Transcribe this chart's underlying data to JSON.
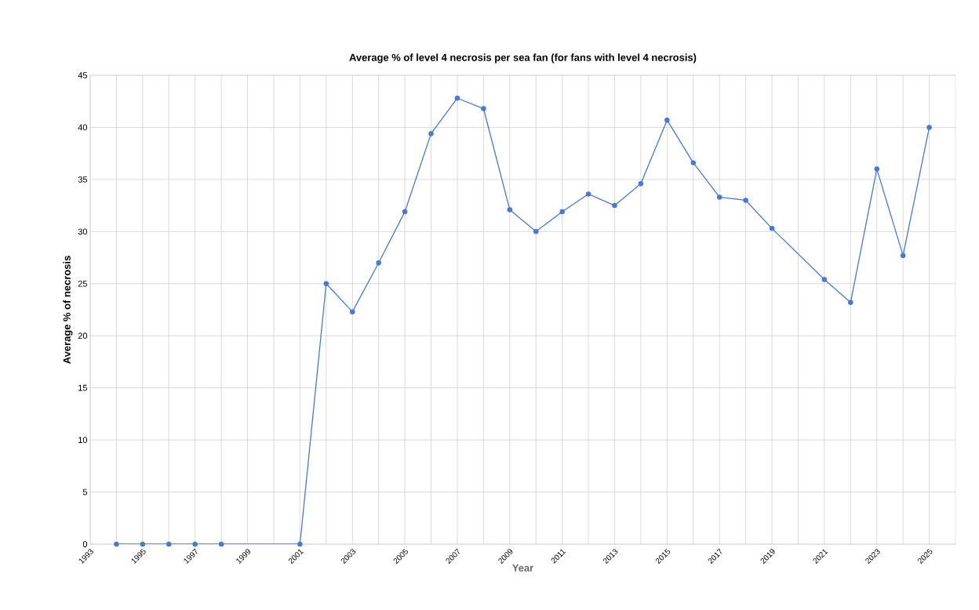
{
  "chart_data": {
    "type": "line",
    "title": "Average %  of level 4 necrosis per sea fan (for fans with level 4 necrosis)",
    "xlabel": "Year",
    "ylabel": "Average % of necrosis",
    "x": [
      1994,
      1995,
      1996,
      1997,
      1998,
      2001,
      2002,
      2003,
      2004,
      2005,
      2006,
      2007,
      2008,
      2009,
      2010,
      2011,
      2012,
      2013,
      2014,
      2015,
      2016,
      2017,
      2018,
      2019,
      2021,
      2022,
      2023,
      2024,
      2025
    ],
    "series": [
      {
        "color": "#4a78d0",
        "values": [
          0,
          0,
          0,
          0,
          0,
          0,
          25.0,
          22.3,
          27.0,
          31.9,
          39.4,
          42.8,
          41.8,
          32.1,
          30.0,
          31.9,
          33.6,
          32.5,
          34.6,
          40.7,
          36.6,
          33.3,
          33.0,
          30.3,
          25.4,
          23.2,
          36.0,
          27.7,
          40.0
        ]
      }
    ],
    "xlim": [
      1993,
      2026
    ],
    "ylim": [
      0,
      45
    ],
    "xticks": [
      1993,
      {
        "value": 1994,
        "label": null
      },
      1995,
      {
        "value": 1996,
        "label": null
      },
      1997,
      {
        "value": 1998,
        "label": null
      },
      1999,
      {
        "value": 2000,
        "label": null
      },
      2001,
      {
        "value": 2002,
        "label": null
      },
      2003,
      {
        "value": 2004,
        "label": null
      },
      2005,
      {
        "value": 2006,
        "label": null
      },
      2007,
      {
        "value": 2008,
        "label": null
      },
      2009,
      {
        "value": 2010,
        "label": null
      },
      2011,
      {
        "value": 2012,
        "label": null
      },
      2013,
      {
        "value": 2014,
        "label": null
      },
      2015,
      {
        "value": 2016,
        "label": null
      },
      2017,
      {
        "value": 2018,
        "label": null
      },
      2019,
      {
        "value": 2020,
        "label": null
      },
      2021,
      {
        "value": 2022,
        "label": null
      },
      2023,
      {
        "value": 2024,
        "label": null
      },
      2025
    ],
    "yticks": [
      0,
      5,
      10,
      15,
      20,
      25,
      30,
      35,
      40,
      45
    ],
    "grid": true,
    "marker": "circle",
    "line_style": "solid"
  }
}
